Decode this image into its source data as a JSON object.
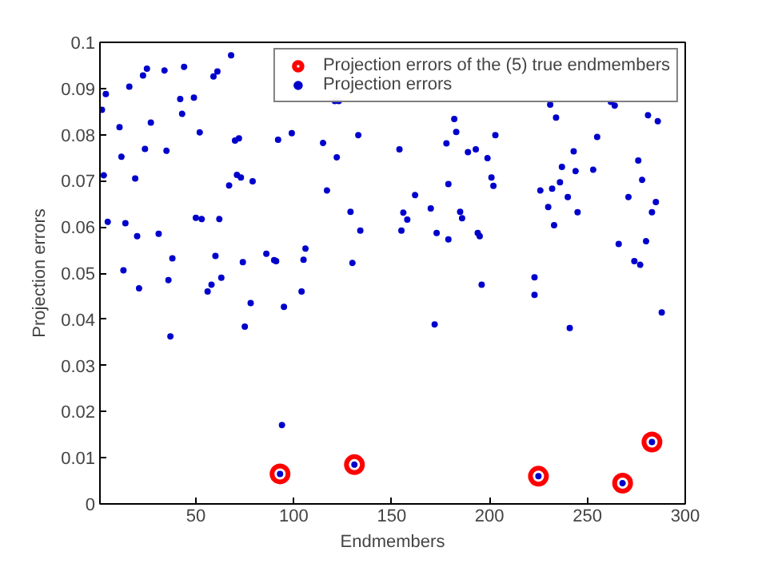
{
  "chart_data": {
    "type": "scatter",
    "xlabel": "Endmembers",
    "ylabel": "Projection errors",
    "xlim": [
      1,
      300
    ],
    "ylim": [
      0,
      0.1
    ],
    "xticks": [
      50,
      100,
      150,
      200,
      250,
      300
    ],
    "yticks": [
      0,
      0.01,
      0.02,
      0.03,
      0.04,
      0.05,
      0.06,
      0.07,
      0.08,
      0.09,
      0.1
    ],
    "grid": false,
    "legend": "top right",
    "series": [
      {
        "name": "Projection errors of the (5) true endmembers",
        "color": "#ff0000",
        "marker": "circle",
        "x": [
          93,
          131,
          225,
          268,
          283
        ],
        "values": [
          0.0065,
          0.0085,
          0.006,
          0.0045,
          0.0134
        ]
      },
      {
        "name": "Projection errors",
        "color": "#0000cc",
        "marker": "circle",
        "x": [
          4,
          2,
          11,
          12,
          3,
          5,
          14,
          16,
          23,
          25,
          34,
          44,
          27,
          24,
          35,
          19,
          20,
          31,
          42,
          43,
          49,
          52,
          50,
          53,
          62,
          38,
          59,
          61,
          68,
          70,
          72,
          71,
          73,
          67,
          79,
          60,
          74,
          86,
          90,
          91,
          92,
          99,
          13,
          21,
          36,
          37,
          56,
          58,
          63,
          78,
          75,
          95,
          94,
          93,
          121,
          123,
          115,
          122,
          133,
          154,
          182,
          183,
          178,
          189,
          193,
          203,
          199,
          201,
          202,
          179,
          117,
          162,
          129,
          156,
          158,
          170,
          185,
          186,
          134,
          155,
          173,
          179,
          194,
          195,
          106,
          105,
          130,
          104,
          196,
          172,
          131,
          231,
          234,
          262,
          264,
          281,
          286,
          255,
          243,
          237,
          244,
          253,
          276,
          278,
          226,
          232,
          236,
          240,
          271,
          285,
          283,
          230,
          245,
          233,
          266,
          280,
          274,
          277,
          223,
          223,
          241,
          288,
          225,
          268,
          283
        ],
        "values": [
          0.0888,
          0.0854,
          0.0816,
          0.0752,
          0.0712,
          0.0611,
          0.0608,
          0.0904,
          0.0928,
          0.0943,
          0.0939,
          0.0947,
          0.0826,
          0.0769,
          0.0765,
          0.0705,
          0.058,
          0.0585,
          0.0877,
          0.0845,
          0.088,
          0.0805,
          0.062,
          0.0617,
          0.0617,
          0.0532,
          0.0926,
          0.0937,
          0.0972,
          0.0787,
          0.0792,
          0.0713,
          0.0707,
          0.069,
          0.0699,
          0.0537,
          0.0524,
          0.0542,
          0.0528,
          0.0526,
          0.0789,
          0.0803,
          0.0506,
          0.0467,
          0.0485,
          0.0363,
          0.046,
          0.0475,
          0.049,
          0.0435,
          0.0384,
          0.0427,
          0.0171,
          0.0065,
          0.0873,
          0.0873,
          0.0782,
          0.0751,
          0.0799,
          0.0768,
          0.0834,
          0.0806,
          0.0781,
          0.0762,
          0.0768,
          0.0799,
          0.0749,
          0.0707,
          0.0689,
          0.0693,
          0.0679,
          0.0669,
          0.0633,
          0.0631,
          0.0616,
          0.064,
          0.0633,
          0.0619,
          0.0592,
          0.0592,
          0.0587,
          0.0573,
          0.0587,
          0.058,
          0.0553,
          0.0529,
          0.0522,
          0.046,
          0.0475,
          0.0389,
          0.0085,
          0.0865,
          0.0837,
          0.0871,
          0.0863,
          0.0842,
          0.0829,
          0.0795,
          0.0764,
          0.073,
          0.0721,
          0.0724,
          0.0744,
          0.0702,
          0.0679,
          0.0683,
          0.0697,
          0.0665,
          0.0665,
          0.0654,
          0.0632,
          0.0643,
          0.0632,
          0.0604,
          0.0563,
          0.0569,
          0.0526,
          0.0518,
          0.0491,
          0.0453,
          0.0381,
          0.0415,
          0.006,
          0.0045,
          0.0134
        ]
      }
    ]
  }
}
